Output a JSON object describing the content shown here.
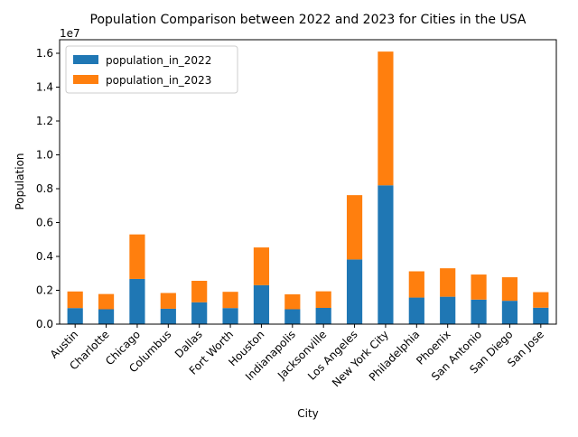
{
  "chart_data": {
    "type": "bar",
    "stacked": true,
    "title": "Population Comparison between 2022 and 2023 for Cities in the USA",
    "xlabel": "City",
    "ylabel": "Population",
    "y_offset_label": "1e7",
    "y_scale": 10000000,
    "ylim": [
      0,
      16800000
    ],
    "yticks": [
      0,
      2000000,
      4000000,
      6000000,
      8000000,
      10000000,
      12000000,
      14000000,
      16000000
    ],
    "ytick_labels": [
      "0.0",
      "0.2",
      "0.4",
      "0.6",
      "0.8",
      "1.0",
      "1.2",
      "1.4",
      "1.6"
    ],
    "grid": false,
    "legend_position": "top-left",
    "categories": [
      "Austin",
      "Charlotte",
      "Chicago",
      "Columbus",
      "Dallas",
      "Fort Worth",
      "Houston",
      "Indianapolis",
      "Jacksonville",
      "Los Angeles",
      "New York City",
      "Philadelphia",
      "Phoenix",
      "San Antonio",
      "San Diego",
      "San Jose"
    ],
    "series": [
      {
        "name": "population_in_2022",
        "color": "#1f77b4",
        "values": [
          950000,
          880000,
          2670000,
          910000,
          1290000,
          950000,
          2300000,
          880000,
          960000,
          3820000,
          8200000,
          1570000,
          1620000,
          1450000,
          1380000,
          970000
        ]
      },
      {
        "name": "population_in_2023",
        "color": "#ff7f0e",
        "values": [
          980000,
          900000,
          2630000,
          930000,
          1270000,
          960000,
          2230000,
          880000,
          980000,
          3800000,
          7900000,
          1550000,
          1680000,
          1480000,
          1390000,
          920000
        ]
      }
    ]
  }
}
